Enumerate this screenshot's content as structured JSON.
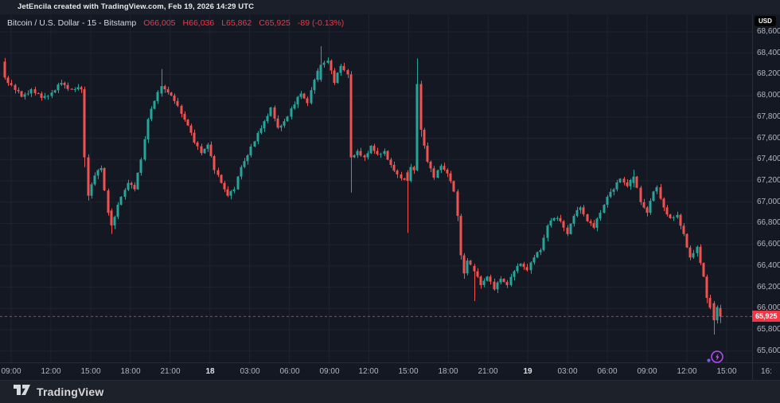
{
  "watermark_bar": {
    "text": "JetEncila created with TradingView.com, Feb 19, 2026 14:29 UTC"
  },
  "legend": {
    "title": "Bitcoin / U.S. Dollar - 15 - Bitstamp",
    "open": "O66,005",
    "high": "H66,036",
    "low": "L65,862",
    "close": "C65,925",
    "change": "-89 (-0.13%)"
  },
  "price_axis": {
    "unit": "USD",
    "last_price": "65,925"
  },
  "footer": {
    "brand": "TradingView"
  },
  "chart_data": {
    "type": "candlestick",
    "symbol": "Bitcoin / U.S. Dollar",
    "interval": "15",
    "exchange": "Bitstamp",
    "last_bar": {
      "open": 66005,
      "high": 66036,
      "low": 65862,
      "close": 65925,
      "change": -89,
      "change_pct": -0.13
    },
    "current_price": 65925,
    "session_high": 68465,
    "session_low": 65755,
    "colors": {
      "up": "#26a69a",
      "down": "#ef5350",
      "last_price": "#f23645",
      "grid": "#1e2330",
      "axis_border": "#2a2e39"
    },
    "y_axis": {
      "unit": "USD",
      "ticks": [
        68600,
        68400,
        68200,
        68000,
        67800,
        67600,
        67400,
        67200,
        67000,
        66800,
        66600,
        66400,
        66200,
        66000,
        65800,
        65600
      ],
      "visible_range": [
        65490,
        68690
      ]
    },
    "x_axis": {
      "ticks": [
        {
          "label": "09:00"
        },
        {
          "label": "12:00"
        },
        {
          "label": "15:00"
        },
        {
          "label": "18:00"
        },
        {
          "label": "21:00"
        },
        {
          "label": "18",
          "day": true
        },
        {
          "label": "03:00"
        },
        {
          "label": "06:00"
        },
        {
          "label": "09:00"
        },
        {
          "label": "12:00"
        },
        {
          "label": "15:00"
        },
        {
          "label": "18:00"
        },
        {
          "label": "21:00"
        },
        {
          "label": "19",
          "day": true
        },
        {
          "label": "03:00"
        },
        {
          "label": "06:00"
        },
        {
          "label": "09:00"
        },
        {
          "label": "12:00"
        },
        {
          "label": "15:00"
        },
        {
          "label": "16:"
        }
      ]
    },
    "candle_count": 216,
    "first_open": 68320,
    "close_anchors": [
      [
        0,
        68170
      ],
      [
        2,
        68100
      ],
      [
        5,
        67990
      ],
      [
        8,
        68060
      ],
      [
        11,
        67980
      ],
      [
        14,
        68030
      ],
      [
        17,
        68120
      ],
      [
        20,
        68060
      ],
      [
        22,
        68080
      ],
      [
        23,
        68060
      ],
      [
        24,
        67420
      ],
      [
        25,
        67060
      ],
      [
        27,
        67250
      ],
      [
        29,
        67320
      ],
      [
        31,
        66900
      ],
      [
        32,
        66780
      ],
      [
        35,
        67050
      ],
      [
        37,
        67180
      ],
      [
        39,
        67120
      ],
      [
        41,
        67400
      ],
      [
        43,
        67780
      ],
      [
        45,
        67950
      ],
      [
        47,
        68090
      ],
      [
        49,
        68030
      ],
      [
        51,
        67950
      ],
      [
        53,
        67830
      ],
      [
        55,
        67720
      ],
      [
        57,
        67560
      ],
      [
        59,
        67460
      ],
      [
        61,
        67540
      ],
      [
        63,
        67300
      ],
      [
        65,
        67180
      ],
      [
        67,
        67060
      ],
      [
        69,
        67120
      ],
      [
        71,
        67330
      ],
      [
        73,
        67440
      ],
      [
        76,
        67650
      ],
      [
        78,
        67760
      ],
      [
        80,
        67890
      ],
      [
        82,
        67700
      ],
      [
        84,
        67760
      ],
      [
        86,
        67880
      ],
      [
        89,
        68020
      ],
      [
        91,
        67930
      ],
      [
        93,
        68150
      ],
      [
        95,
        68290
      ],
      [
        97,
        68330
      ],
      [
        99,
        68120
      ],
      [
        101,
        68280
      ],
      [
        103,
        68200
      ],
      [
        104,
        67420
      ],
      [
        106,
        67480
      ],
      [
        108,
        67420
      ],
      [
        110,
        67530
      ],
      [
        112,
        67450
      ],
      [
        114,
        67480
      ],
      [
        116,
        67350
      ],
      [
        118,
        67260
      ],
      [
        120,
        67210
      ],
      [
        121,
        67200
      ],
      [
        122,
        67330
      ],
      [
        123,
        67300
      ],
      [
        124,
        68110
      ],
      [
        125,
        67680
      ],
      [
        127,
        67380
      ],
      [
        129,
        67230
      ],
      [
        131,
        67340
      ],
      [
        133,
        67270
      ],
      [
        135,
        67100
      ],
      [
        136,
        66870
      ],
      [
        137,
        66500
      ],
      [
        138,
        66330
      ],
      [
        139,
        66450
      ],
      [
        141,
        66350
      ],
      [
        143,
        66220
      ],
      [
        145,
        66300
      ],
      [
        147,
        66180
      ],
      [
        149,
        66280
      ],
      [
        151,
        66220
      ],
      [
        153,
        66350
      ],
      [
        155,
        66420
      ],
      [
        157,
        66360
      ],
      [
        159,
        66480
      ],
      [
        161,
        66550
      ],
      [
        163,
        66780
      ],
      [
        165,
        66850
      ],
      [
        167,
        66820
      ],
      [
        169,
        66700
      ],
      [
        171,
        66870
      ],
      [
        173,
        66950
      ],
      [
        175,
        66820
      ],
      [
        177,
        66760
      ],
      [
        179,
        66900
      ],
      [
        181,
        67050
      ],
      [
        183,
        67120
      ],
      [
        185,
        67220
      ],
      [
        187,
        67150
      ],
      [
        189,
        67240
      ],
      [
        191,
        67000
      ],
      [
        193,
        66900
      ],
      [
        195,
        67100
      ],
      [
        196,
        67140
      ],
      [
        198,
        66950
      ],
      [
        200,
        66850
      ],
      [
        202,
        66880
      ],
      [
        204,
        66700
      ],
      [
        206,
        66480
      ],
      [
        208,
        66580
      ],
      [
        210,
        66300
      ],
      [
        211,
        66100
      ],
      [
        213,
        65890
      ],
      [
        214,
        66014
      ],
      [
        215,
        65925
      ]
    ],
    "ohlc_overrides": {
      "0": [
        68320,
        68355,
        68150,
        68170
      ],
      "24": [
        68060,
        68085,
        67330,
        67420
      ],
      "25": [
        67420,
        67450,
        67015,
        67060
      ],
      "32": [
        66920,
        66940,
        66700,
        66780
      ],
      "47": [
        68020,
        68250,
        67990,
        68090
      ],
      "95": [
        68150,
        68465,
        68130,
        68290
      ],
      "104": [
        68200,
        68230,
        67090,
        67420
      ],
      "121": [
        67280,
        67300,
        66710,
        67200
      ],
      "124": [
        67300,
        68350,
        67290,
        68110
      ],
      "125": [
        68110,
        68140,
        67615,
        67680
      ],
      "136": [
        67100,
        67120,
        66820,
        66870
      ],
      "137": [
        66870,
        66890,
        66460,
        66500
      ],
      "138": [
        66500,
        66520,
        66280,
        66330
      ],
      "141": [
        66400,
        66420,
        66070,
        66350
      ],
      "189": [
        67180,
        67305,
        67140,
        67240
      ],
      "211": [
        66300,
        66320,
        66050,
        66100
      ],
      "213": [
        66050,
        66070,
        65755,
        65890
      ],
      "214": [
        65890,
        66030,
        65860,
        66014
      ],
      "215": [
        66005,
        66036,
        65862,
        65925
      ]
    }
  }
}
